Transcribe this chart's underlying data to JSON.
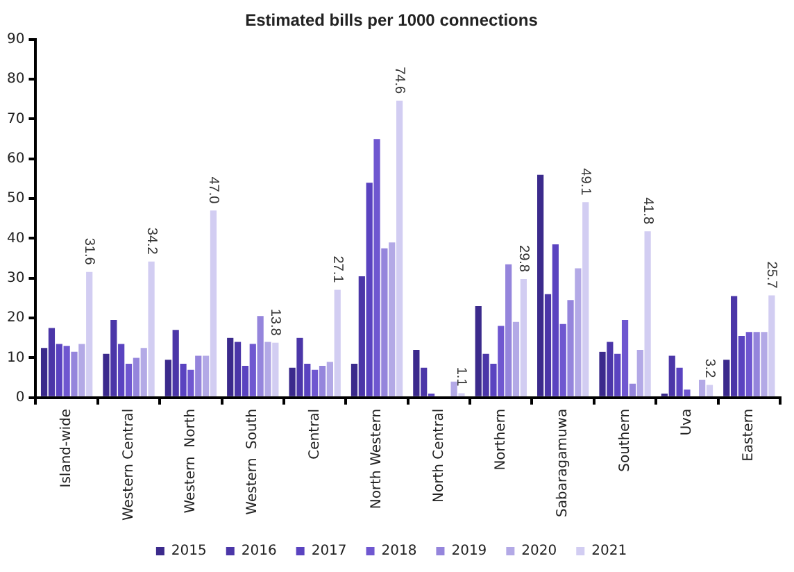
{
  "chart_data": {
    "type": "bar",
    "title": "Estimated bills per 1000 connections",
    "categories": [
      "Island-wide",
      "Western Central",
      "Western  North",
      "Western  South",
      "Central",
      "North Western",
      "North Central",
      "Northern",
      "Sabaragamuwa",
      "Southern",
      "Uva",
      "Eastern"
    ],
    "series": [
      {
        "name": "2015",
        "color": "#3b2a8c",
        "values": [
          12.5,
          11,
          9.5,
          15,
          7.5,
          8.5,
          12,
          23,
          56,
          11.5,
          1,
          9.5
        ]
      },
      {
        "name": "2016",
        "color": "#4b36a8",
        "values": [
          17.5,
          19.5,
          17,
          14,
          15,
          30.5,
          7.5,
          11,
          26,
          14,
          10.5,
          25.5
        ]
      },
      {
        "name": "2017",
        "color": "#5a43c0",
        "values": [
          13.5,
          13.5,
          8.5,
          8,
          8.5,
          54,
          1,
          8.5,
          38.5,
          11,
          7.5,
          15.5
        ]
      },
      {
        "name": "2018",
        "color": "#6f57d0",
        "values": [
          13,
          8.5,
          7,
          13.5,
          7,
          65,
          0,
          18,
          18.5,
          19.5,
          2,
          16.5
        ]
      },
      {
        "name": "2019",
        "color": "#9585dc",
        "values": [
          11.5,
          10,
          10.5,
          20.5,
          8,
          37.5,
          0,
          33.5,
          24.5,
          3.5,
          0,
          16.5
        ]
      },
      {
        "name": "2020",
        "color": "#b3a9e6",
        "values": [
          13.5,
          12.5,
          10.5,
          14,
          9,
          39,
          4,
          19,
          32.5,
          12,
          4.5,
          16.5
        ]
      },
      {
        "name": "2021",
        "color": "#d2cdf2",
        "values": [
          31.6,
          34.2,
          47.0,
          13.8,
          27.1,
          74.6,
          1.1,
          29.8,
          49.1,
          41.8,
          3.2,
          25.7
        ],
        "value_labels": [
          "31.6",
          "34.2",
          "47.0",
          "13.8",
          "27.1",
          "74.6",
          "1.1",
          "29.8",
          "49.1",
          "41.8",
          "3.2",
          "25.7"
        ]
      }
    ],
    "ylim": [
      0,
      90
    ],
    "yticks": [
      0,
      10,
      20,
      30,
      40,
      50,
      60,
      70,
      80,
      90
    ],
    "grid": false,
    "legend": "bottom"
  }
}
